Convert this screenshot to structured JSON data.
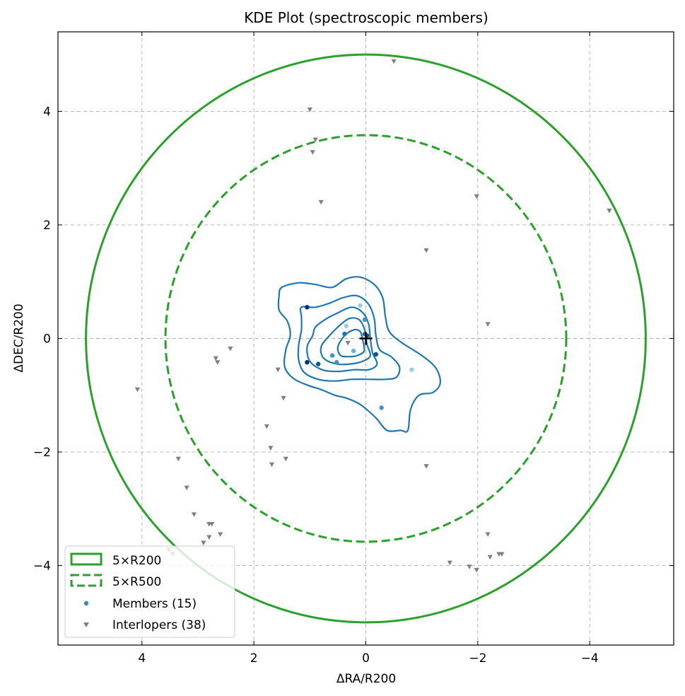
{
  "chart_data": {
    "type": "scatter",
    "title": "KDE Plot (spectroscopic members)",
    "xlabel": "ΔRA/R200",
    "ylabel": "ΔDEC/R200",
    "xlim": [
      5.5,
      -5.5
    ],
    "ylim": [
      -5.4,
      5.4
    ],
    "x_inverted": true,
    "xticks": [
      4,
      2,
      0,
      -2,
      -4
    ],
    "yticks": [
      4,
      2,
      0,
      -2,
      -4
    ],
    "xtick_labels": [
      "4",
      "2",
      "0",
      "−2",
      "−4"
    ],
    "ytick_labels": [
      "4",
      "2",
      "0",
      "−2",
      "−4"
    ],
    "grid": true,
    "legend_position": "lower-left",
    "colors": {
      "circle": "#2ca02c",
      "contour": "#1f77b4",
      "interloper": "#808080",
      "member_legend": "#3a88c4",
      "center_marker": "#000000"
    },
    "circles": [
      {
        "name": "5×R200",
        "radius": 5.0,
        "style": "solid"
      },
      {
        "name": "5×R500",
        "radius": 3.58,
        "style": "dashed"
      }
    ],
    "center_marker": {
      "x": 0,
      "y": 0,
      "symbol": "+"
    },
    "kde_contours": [
      [
        [
          1.5,
          0.9
        ],
        [
          1.2,
          0.98
        ],
        [
          0.9,
          0.95
        ],
        [
          0.6,
          0.9
        ],
        [
          0.35,
          1.05
        ],
        [
          0.1,
          1.08
        ],
        [
          -0.15,
          0.95
        ],
        [
          -0.3,
          0.72
        ],
        [
          -0.35,
          0.38
        ],
        [
          -0.42,
          0.12
        ],
        [
          -0.65,
          -0.08
        ],
        [
          -1.0,
          -0.3
        ],
        [
          -1.25,
          -0.52
        ],
        [
          -1.33,
          -0.78
        ],
        [
          -1.2,
          -0.95
        ],
        [
          -0.95,
          -1.0
        ],
        [
          -0.8,
          -1.25
        ],
        [
          -0.75,
          -1.62
        ],
        [
          -0.62,
          -1.62
        ],
        [
          -0.38,
          -1.62
        ],
        [
          -0.2,
          -1.42
        ],
        [
          -0.05,
          -1.28
        ],
        [
          0.12,
          -1.15
        ],
        [
          0.35,
          -1.05
        ],
        [
          0.55,
          -1.0
        ],
        [
          0.8,
          -0.9
        ],
        [
          1.05,
          -0.82
        ],
        [
          1.3,
          -0.7
        ],
        [
          1.45,
          -0.5
        ],
        [
          1.43,
          -0.2
        ],
        [
          1.35,
          0.05
        ],
        [
          1.4,
          0.3
        ],
        [
          1.55,
          0.5
        ],
        [
          1.55,
          0.75
        ]
      ],
      [
        [
          1.15,
          0.55
        ],
        [
          0.9,
          0.55
        ],
        [
          0.65,
          0.62
        ],
        [
          0.4,
          0.72
        ],
        [
          0.15,
          0.75
        ],
        [
          -0.05,
          0.6
        ],
        [
          -0.15,
          0.35
        ],
        [
          -0.18,
          0.05
        ],
        [
          -0.25,
          -0.2
        ],
        [
          -0.45,
          -0.32
        ],
        [
          -0.6,
          -0.5
        ],
        [
          -0.55,
          -0.68
        ],
        [
          -0.35,
          -0.72
        ],
        [
          -0.05,
          -0.72
        ],
        [
          0.25,
          -0.72
        ],
        [
          0.55,
          -0.75
        ],
        [
          0.85,
          -0.72
        ],
        [
          1.1,
          -0.6
        ],
        [
          1.2,
          -0.38
        ],
        [
          1.2,
          -0.12
        ],
        [
          1.15,
          0.15
        ],
        [
          1.15,
          0.38
        ]
      ],
      [
        [
          0.9,
          0.2
        ],
        [
          0.7,
          0.35
        ],
        [
          0.5,
          0.45
        ],
        [
          0.25,
          0.55
        ],
        [
          0.05,
          0.45
        ],
        [
          -0.05,
          0.25
        ],
        [
          -0.08,
          0.0
        ],
        [
          -0.12,
          -0.25
        ],
        [
          -0.2,
          -0.45
        ],
        [
          -0.05,
          -0.55
        ],
        [
          0.2,
          -0.55
        ],
        [
          0.5,
          -0.58
        ],
        [
          0.78,
          -0.55
        ],
        [
          1.0,
          -0.4
        ],
        [
          1.05,
          -0.15
        ],
        [
          0.95,
          0.05
        ]
      ],
      [
        [
          0.65,
          0.05
        ],
        [
          0.5,
          0.2
        ],
        [
          0.3,
          0.35
        ],
        [
          0.12,
          0.33
        ],
        [
          0.02,
          0.15
        ],
        [
          -0.02,
          -0.1
        ],
        [
          -0.08,
          -0.3
        ],
        [
          0.05,
          -0.4
        ],
        [
          0.28,
          -0.45
        ],
        [
          0.52,
          -0.45
        ],
        [
          0.75,
          -0.35
        ],
        [
          0.8,
          -0.15
        ]
      ],
      [
        [
          0.5,
          -0.15
        ],
        [
          0.38,
          0.05
        ],
        [
          0.22,
          0.15
        ],
        [
          0.1,
          0.12
        ],
        [
          0.05,
          -0.05
        ],
        [
          0.03,
          -0.22
        ],
        [
          0.15,
          -0.3
        ],
        [
          0.3,
          -0.32
        ],
        [
          0.45,
          -0.3
        ]
      ]
    ],
    "series": [
      {
        "name": "Members (15)",
        "marker": "circle",
        "points": [
          {
            "x": 1.05,
            "y": 0.55,
            "color": "#08306b"
          },
          {
            "x": 1.05,
            "y": -0.42,
            "color": "#08306b"
          },
          {
            "x": 0.85,
            "y": -0.45,
            "color": "#08519c"
          },
          {
            "x": 0.6,
            "y": -0.3,
            "color": "#4292c6"
          },
          {
            "x": 0.52,
            "y": -0.42,
            "color": "#4292c6"
          },
          {
            "x": 0.38,
            "y": 0.08,
            "color": "#2171b5"
          },
          {
            "x": 0.22,
            "y": -0.22,
            "color": "#6baed6"
          },
          {
            "x": 0.1,
            "y": 0.58,
            "color": "#9ecae1"
          },
          {
            "x": 0.02,
            "y": 0.08,
            "color": "#2171b5"
          },
          {
            "x": -0.02,
            "y": 0.05,
            "color": "#08519c"
          },
          {
            "x": 0.02,
            "y": 0.33,
            "color": "#4292c6"
          },
          {
            "x": -0.18,
            "y": -0.28,
            "color": "#08519c"
          },
          {
            "x": -0.28,
            "y": -1.22,
            "color": "#4292c6"
          },
          {
            "x": -0.82,
            "y": -0.55,
            "color": "#9ecae1"
          },
          {
            "x": 0.35,
            "y": 0.22,
            "color": "#9ecae1"
          }
        ]
      },
      {
        "name": "Interlopers (38)",
        "marker": "triangle-down",
        "points": [
          {
            "x": -0.5,
            "y": 4.88
          },
          {
            "x": 1.0,
            "y": 4.03
          },
          {
            "x": 0.9,
            "y": 3.5
          },
          {
            "x": 0.95,
            "y": 3.28
          },
          {
            "x": 0.8,
            "y": 2.4
          },
          {
            "x": -1.98,
            "y": 2.5
          },
          {
            "x": -4.35,
            "y": 2.25
          },
          {
            "x": -1.08,
            "y": 1.55
          },
          {
            "x": -2.18,
            "y": 0.25
          },
          {
            "x": 0.32,
            "y": -0.08
          },
          {
            "x": 1.57,
            "y": -0.55
          },
          {
            "x": 1.47,
            "y": -1.05
          },
          {
            "x": 2.42,
            "y": -0.18
          },
          {
            "x": 2.68,
            "y": -0.35
          },
          {
            "x": 2.65,
            "y": -0.42
          },
          {
            "x": 4.08,
            "y": -0.9
          },
          {
            "x": 1.77,
            "y": -1.55
          },
          {
            "x": 1.7,
            "y": -1.93
          },
          {
            "x": 1.68,
            "y": -2.22
          },
          {
            "x": 1.43,
            "y": -2.12
          },
          {
            "x": 3.35,
            "y": -2.12
          },
          {
            "x": 3.2,
            "y": -2.63
          },
          {
            "x": 3.07,
            "y": -3.1
          },
          {
            "x": 2.8,
            "y": -3.27
          },
          {
            "x": 2.75,
            "y": -3.27
          },
          {
            "x": 2.6,
            "y": -3.45
          },
          {
            "x": 2.8,
            "y": -3.5
          },
          {
            "x": 2.9,
            "y": -3.6
          },
          {
            "x": -1.08,
            "y": -2.25
          },
          {
            "x": -2.18,
            "y": -3.45
          },
          {
            "x": -2.22,
            "y": -3.85
          },
          {
            "x": -2.38,
            "y": -3.8
          },
          {
            "x": -2.43,
            "y": -3.8
          },
          {
            "x": -1.5,
            "y": -3.95
          },
          {
            "x": -1.85,
            "y": -4.02
          },
          {
            "x": -1.98,
            "y": -4.08
          },
          {
            "x": 3.45,
            "y": -3.8
          },
          {
            "x": 3.52,
            "y": -3.72
          }
        ]
      }
    ]
  }
}
